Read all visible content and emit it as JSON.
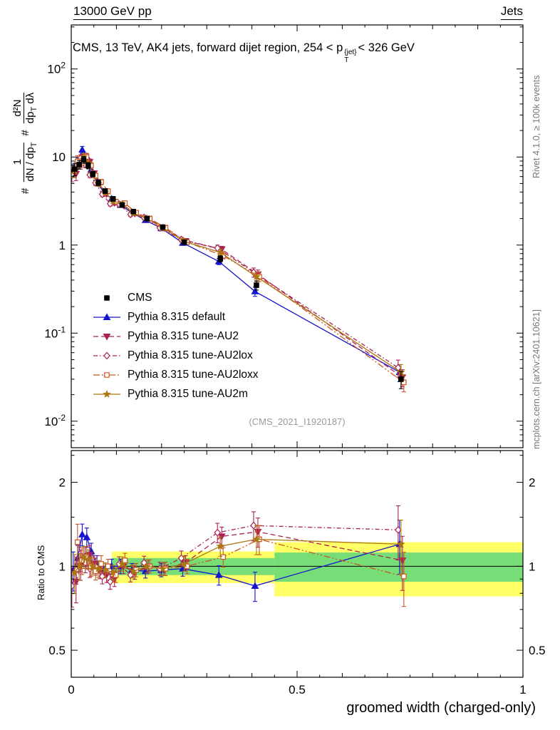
{
  "header": {
    "left": "13000 GeV pp",
    "right": "Jets"
  },
  "plot": {
    "title": {
      "prefix": "CMS, 13 TeV, AK4 jets, forward dijet region, 254 < p",
      "sup": "{jet}",
      "sub": "T",
      "suffix": "< 326 GeV"
    },
    "ylabel": {
      "hash_bottom": "#",
      "frac1_num": "1",
      "frac1_den_main": "dN / dp",
      "frac1_den_sub": "T",
      "hash_mid": "#",
      "frac2_num": "d²N",
      "frac2_den_main": "dp",
      "frac2_den_sub": "T",
      "frac2_den_tail": " dλ"
    },
    "ratio_ylabel": "Ratio to CMS",
    "xlabel": "groomed width (charged-only)",
    "watermark": "(CMS_2021_I1920187)",
    "side_notes": {
      "top": "Rivet 4.1.0, ≥ 100k events",
      "bottom": "mcplots.cern.ch [arXiv:2401.10621]"
    }
  },
  "chart_data": {
    "type": "line",
    "title": "CMS, 13 TeV, AK4 jets, forward dijet region, 254 < p_T^{jet} < 326 GeV",
    "xlabel": "groomed width (charged-only)",
    "ylabel": "# 1/(dN/dp_T) d²N/(dp_T dλ) #",
    "ratio_ylabel": "Ratio to CMS",
    "x_axis": {
      "min": 0,
      "max": 1,
      "major_ticks": [
        0,
        0.5,
        1
      ],
      "major_tick_labels": [
        "0",
        "0.5",
        "1"
      ]
    },
    "main_panel": {
      "scale": "log",
      "ylim": [
        0.005,
        316
      ],
      "decade_labels": [
        2,
        1,
        0,
        -1,
        -2
      ]
    },
    "ratio_panel": {
      "scale": "log",
      "ylim": [
        0.4,
        2.6
      ],
      "ticks": [
        0.5,
        1,
        2
      ],
      "tick_labels": [
        "0.5",
        "1",
        "2"
      ],
      "minor_ticks": [
        0.4,
        0.6,
        0.7,
        0.8,
        0.9,
        1.5,
        2.5
      ]
    },
    "x": [
      0.0075,
      0.0175,
      0.0275,
      0.0375,
      0.0475,
      0.06,
      0.075,
      0.0925,
      0.1125,
      0.1375,
      0.1675,
      0.2025,
      0.25,
      0.33,
      0.41,
      0.73
    ],
    "cms_values": [
      7.3,
      8.2,
      9.3,
      8.0,
      6.4,
      5.1,
      4.1,
      3.35,
      2.85,
      2.4,
      2.0,
      1.6,
      1.08,
      0.7,
      0.35,
      0.03
    ],
    "rel_errors": [
      0.16,
      0.11,
      0.09,
      0.08,
      0.07,
      0.07,
      0.06,
      0.06,
      0.06,
      0.055,
      0.055,
      0.055,
      0.06,
      0.08,
      0.12,
      0.22
    ],
    "series": [
      {
        "id": "cms",
        "name": "CMS",
        "color": "#000000",
        "marker": "square",
        "open": false,
        "line": false,
        "dash": null,
        "dx": 0
      },
      {
        "id": "default",
        "name": "Pythia 8.315 default",
        "color": "#1515cc",
        "marker": "triangle-up",
        "open": false,
        "line": true,
        "dash": null,
        "dx": -2,
        "ratio": [
          0.97,
          1.07,
          1.3,
          1.27,
          1.13,
          1.02,
          0.97,
          1.0,
          1.0,
          0.97,
          0.96,
          0.97,
          0.98,
          0.93,
          0.85,
          1.2
        ]
      },
      {
        "id": "au2",
        "name": "Pythia 8.315 tune-AU2",
        "color": "#aa2255",
        "marker": "triangle-down",
        "open": false,
        "line": true,
        "dash": "7,4",
        "dx": 2,
        "ratio": [
          0.88,
          1.0,
          1.08,
          1.1,
          1.02,
          0.97,
          0.93,
          0.9,
          1.0,
          0.95,
          1.0,
          0.98,
          1.03,
          1.28,
          1.33,
          1.05
        ]
      },
      {
        "id": "au2lox",
        "name": "Pythia 8.315 tune-AU2lox",
        "color": "#aa2255",
        "marker": "diamond",
        "open": true,
        "line": true,
        "dash": "6,3,1.5,3",
        "dx": -4,
        "ratio": [
          0.85,
          0.97,
          1.05,
          1.03,
          0.98,
          1.0,
          0.92,
          0.88,
          1.02,
          0.93,
          1.03,
          0.98,
          1.07,
          1.32,
          1.4,
          1.35
        ]
      },
      {
        "id": "au2loxx",
        "name": "Pythia 8.315 tune-AU2loxx",
        "color": "#cc5522",
        "marker": "square",
        "open": true,
        "line": true,
        "dash": "9,3,2,3,2,3",
        "dx": 4,
        "ratio": [
          1.22,
          1.05,
          1.08,
          1.0,
          0.96,
          1.02,
          1.0,
          0.93,
          1.05,
          0.97,
          1.0,
          0.98,
          1.0,
          1.08,
          1.25,
          0.92
        ]
      },
      {
        "id": "au2m",
        "name": "Pythia 8.315 tune-AU2m",
        "color": "#aa7711",
        "marker": "star",
        "open": false,
        "line": true,
        "dash": null,
        "dx": 0,
        "ratio": [
          0.95,
          1.0,
          1.08,
          1.06,
          1.0,
          0.98,
          0.97,
          0.95,
          1.02,
          0.96,
          1.0,
          0.98,
          1.02,
          1.18,
          1.25,
          1.2
        ]
      }
    ],
    "bands": {
      "yellow": {
        "color": "#ffff66",
        "segments": [
          {
            "x0": 0.09,
            "x1": 0.45,
            "lo": 0.87,
            "hi": 1.13
          },
          {
            "x0": 0.45,
            "x1": 1.0,
            "lo": 0.78,
            "hi": 1.22
          }
        ]
      },
      "green": {
        "color": "#77dd77",
        "segments": [
          {
            "x0": 0.09,
            "x1": 0.45,
            "lo": 0.93,
            "hi": 1.07
          },
          {
            "x0": 0.45,
            "x1": 1.0,
            "lo": 0.88,
            "hi": 1.12
          }
        ]
      }
    },
    "legend_position": "inside-left"
  }
}
